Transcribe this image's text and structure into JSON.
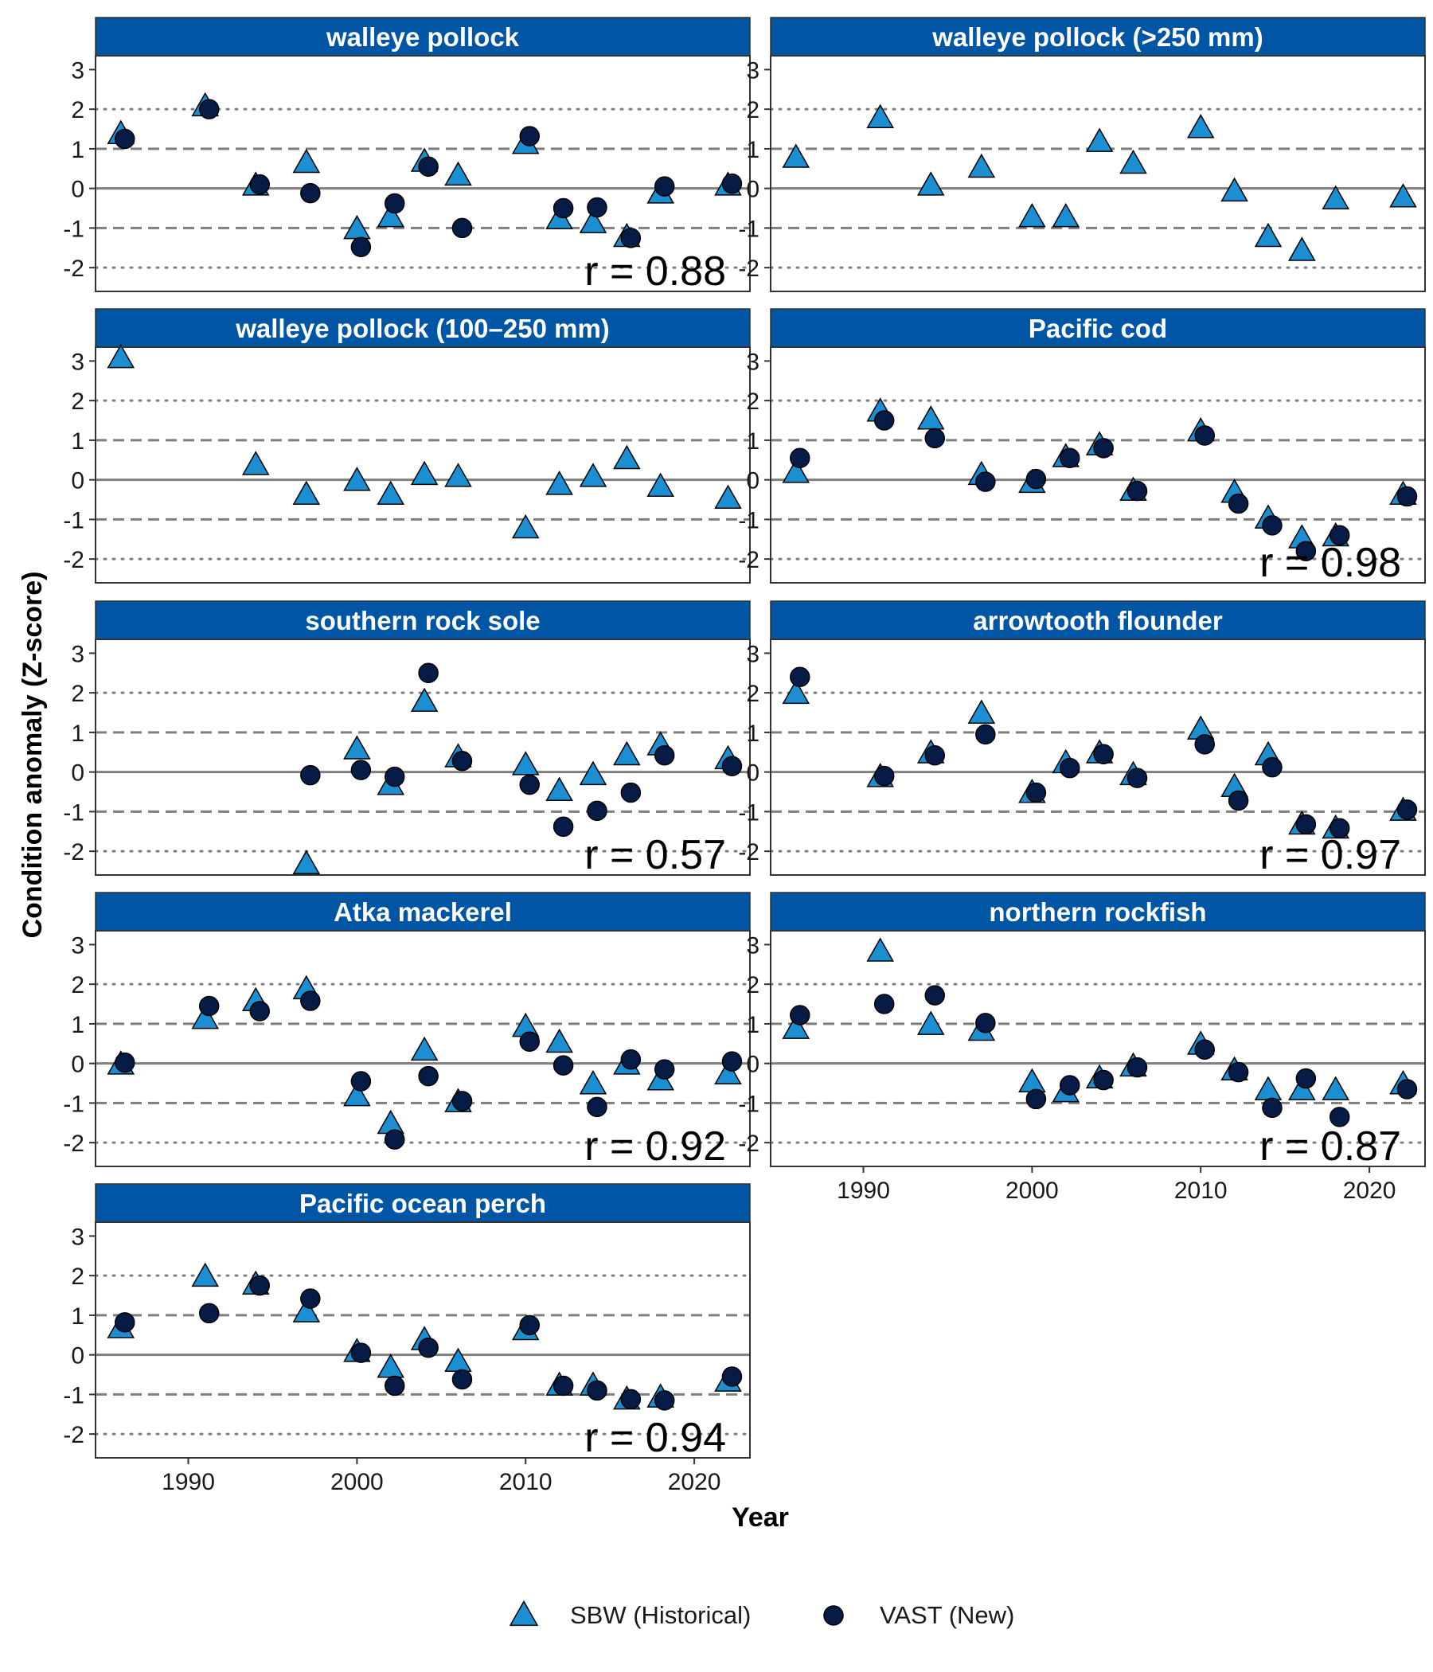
{
  "chart_data": {
    "type": "scatter",
    "xlabel": "Year",
    "ylabel": "Condition anomaly (Z-score)",
    "xlim": [
      1984.5,
      2023.3
    ],
    "ylim": [
      -2.6,
      3.35
    ],
    "x_ticks": [
      1990,
      2000,
      2010,
      2020
    ],
    "y_ticks": [
      -2,
      -1,
      0,
      1,
      2,
      3
    ],
    "reference_lines": {
      "solid": [
        0
      ],
      "dashed": [
        -1,
        1
      ],
      "dotted": [
        -2,
        2
      ]
    },
    "legend": {
      "position": "bottom",
      "entries": [
        {
          "key": "sbw",
          "label": "SBW (Historical)",
          "marker": "triangle",
          "color": "#1b8fd1"
        },
        {
          "key": "vast",
          "label": "VAST (New)",
          "marker": "circle",
          "color": "#061b45"
        }
      ]
    },
    "colors": {
      "strip": "#0055a5",
      "sbw": "#1b8fd1",
      "vast": "#061b45",
      "zero_line": "#7f7f7f",
      "guide_line": "#7f7f7f"
    },
    "panels": [
      {
        "title": "walleye pollock",
        "r": "r = 0.88",
        "sbw": [
          [
            1986,
            1.35
          ],
          [
            1991,
            2.05
          ],
          [
            1994,
            0.05
          ],
          [
            1997,
            0.62
          ],
          [
            2000,
            -1.05
          ],
          [
            2002,
            -0.75
          ],
          [
            2004,
            0.65
          ],
          [
            2006,
            0.3
          ],
          [
            2010,
            1.1
          ],
          [
            2012,
            -0.8
          ],
          [
            2014,
            -0.9
          ],
          [
            2016,
            -1.25
          ],
          [
            2018,
            -0.15
          ],
          [
            2022,
            0.05
          ]
        ],
        "vast": [
          [
            1986,
            1.25
          ],
          [
            1991,
            2.0
          ],
          [
            1994,
            0.1
          ],
          [
            1997,
            -0.12
          ],
          [
            2000,
            -1.48
          ],
          [
            2002,
            -0.38
          ],
          [
            2004,
            0.55
          ],
          [
            2006,
            -1.0
          ],
          [
            2010,
            1.32
          ],
          [
            2012,
            -0.5
          ],
          [
            2014,
            -0.48
          ],
          [
            2016,
            -1.25
          ],
          [
            2018,
            0.05
          ],
          [
            2022,
            0.12
          ]
        ]
      },
      {
        "title": "walleye pollock (>250 mm)",
        "r": "",
        "sbw": [
          [
            1986,
            0.75
          ],
          [
            1991,
            1.75
          ],
          [
            1994,
            0.05
          ],
          [
            1997,
            0.5
          ],
          [
            2000,
            -0.75
          ],
          [
            2002,
            -0.75
          ],
          [
            2004,
            1.15
          ],
          [
            2006,
            0.6
          ],
          [
            2010,
            1.5
          ],
          [
            2012,
            -0.1
          ],
          [
            2014,
            -1.25
          ],
          [
            2016,
            -1.6
          ],
          [
            2018,
            -0.3
          ],
          [
            2022,
            -0.25
          ]
        ],
        "vast": []
      },
      {
        "title": "walleye pollock (100–250 mm)",
        "r": "",
        "sbw": [
          [
            1986,
            3.05
          ],
          [
            1994,
            0.35
          ],
          [
            1997,
            -0.4
          ],
          [
            2000,
            -0.05
          ],
          [
            2002,
            -0.4
          ],
          [
            2004,
            0.1
          ],
          [
            2006,
            0.05
          ],
          [
            2010,
            -1.25
          ],
          [
            2012,
            -0.15
          ],
          [
            2014,
            0.05
          ],
          [
            2016,
            0.5
          ],
          [
            2018,
            -0.2
          ],
          [
            2022,
            -0.5
          ]
        ],
        "vast": []
      },
      {
        "title": "Pacific cod",
        "r": "r = 0.98",
        "sbw": [
          [
            1986,
            0.15
          ],
          [
            1991,
            1.7
          ],
          [
            1994,
            1.5
          ],
          [
            1997,
            0.1
          ],
          [
            2000,
            -0.1
          ],
          [
            2002,
            0.55
          ],
          [
            2004,
            0.85
          ],
          [
            2006,
            -0.3
          ],
          [
            2010,
            1.2
          ],
          [
            2012,
            -0.35
          ],
          [
            2014,
            -1.0
          ],
          [
            2016,
            -1.5
          ],
          [
            2018,
            -1.45
          ],
          [
            2022,
            -0.4
          ]
        ],
        "vast": [
          [
            1986,
            0.55
          ],
          [
            1991,
            1.5
          ],
          [
            1994,
            1.05
          ],
          [
            1997,
            -0.05
          ],
          [
            2000,
            0.02
          ],
          [
            2002,
            0.55
          ],
          [
            2004,
            0.8
          ],
          [
            2006,
            -0.28
          ],
          [
            2010,
            1.12
          ],
          [
            2012,
            -0.6
          ],
          [
            2014,
            -1.15
          ],
          [
            2016,
            -1.8
          ],
          [
            2018,
            -1.4
          ],
          [
            2022,
            -0.42
          ]
        ]
      },
      {
        "title": "southern rock sole",
        "r": "r = 0.57",
        "sbw": [
          [
            1997,
            -2.35
          ],
          [
            2000,
            0.55
          ],
          [
            2002,
            -0.35
          ],
          [
            2004,
            1.75
          ],
          [
            2006,
            0.35
          ],
          [
            2010,
            0.15
          ],
          [
            2012,
            -0.5
          ],
          [
            2014,
            -0.1
          ],
          [
            2016,
            0.4
          ],
          [
            2018,
            0.65
          ],
          [
            2022,
            0.3
          ]
        ],
        "vast": [
          [
            1997,
            -0.08
          ],
          [
            2000,
            0.05
          ],
          [
            2002,
            -0.12
          ],
          [
            2004,
            2.5
          ],
          [
            2006,
            0.28
          ],
          [
            2010,
            -0.32
          ],
          [
            2012,
            -1.38
          ],
          [
            2014,
            -0.98
          ],
          [
            2016,
            -0.52
          ],
          [
            2018,
            0.42
          ],
          [
            2022,
            0.15
          ]
        ]
      },
      {
        "title": "arrowtooth flounder",
        "r": "r = 0.97",
        "sbw": [
          [
            1986,
            1.95
          ],
          [
            1991,
            -0.15
          ],
          [
            1994,
            0.45
          ],
          [
            1997,
            1.45
          ],
          [
            2000,
            -0.55
          ],
          [
            2002,
            0.2
          ],
          [
            2004,
            0.45
          ],
          [
            2006,
            -0.1
          ],
          [
            2010,
            1.05
          ],
          [
            2012,
            -0.4
          ],
          [
            2014,
            0.4
          ],
          [
            2016,
            -1.35
          ],
          [
            2018,
            -1.45
          ],
          [
            2022,
            -1.0
          ]
        ],
        "vast": [
          [
            1986,
            2.4
          ],
          [
            1991,
            -0.1
          ],
          [
            1994,
            0.42
          ],
          [
            1997,
            0.95
          ],
          [
            2000,
            -0.52
          ],
          [
            2002,
            0.1
          ],
          [
            2004,
            0.45
          ],
          [
            2006,
            -0.15
          ],
          [
            2010,
            0.7
          ],
          [
            2012,
            -0.72
          ],
          [
            2014,
            0.12
          ],
          [
            2016,
            -1.32
          ],
          [
            2018,
            -1.42
          ],
          [
            2022,
            -0.95
          ]
        ]
      },
      {
        "title": "Atka mackerel",
        "r": "r = 0.92",
        "sbw": [
          [
            1986,
            -0.05
          ],
          [
            1991,
            1.1
          ],
          [
            1994,
            1.55
          ],
          [
            1997,
            1.85
          ],
          [
            2000,
            -0.85
          ],
          [
            2002,
            -1.55
          ],
          [
            2004,
            0.3
          ],
          [
            2006,
            -1.0
          ],
          [
            2010,
            0.9
          ],
          [
            2012,
            0.5
          ],
          [
            2014,
            -0.55
          ],
          [
            2016,
            -0.05
          ],
          [
            2018,
            -0.45
          ],
          [
            2022,
            -0.3
          ]
        ],
        "vast": [
          [
            1986,
            0.02
          ],
          [
            1991,
            1.45
          ],
          [
            1994,
            1.32
          ],
          [
            1997,
            1.58
          ],
          [
            2000,
            -0.45
          ],
          [
            2002,
            -1.92
          ],
          [
            2004,
            -0.32
          ],
          [
            2006,
            -0.95
          ],
          [
            2010,
            0.55
          ],
          [
            2012,
            -0.05
          ],
          [
            2014,
            -1.1
          ],
          [
            2016,
            0.1
          ],
          [
            2018,
            -0.15
          ],
          [
            2022,
            0.05
          ]
        ]
      },
      {
        "title": "northern rockfish",
        "r": "r = 0.87",
        "sbw": [
          [
            1986,
            0.85
          ],
          [
            1991,
            2.8
          ],
          [
            1994,
            0.95
          ],
          [
            1997,
            0.8
          ],
          [
            2000,
            -0.5
          ],
          [
            2002,
            -0.75
          ],
          [
            2004,
            -0.4
          ],
          [
            2006,
            -0.1
          ],
          [
            2010,
            0.45
          ],
          [
            2012,
            -0.2
          ],
          [
            2014,
            -0.7
          ],
          [
            2016,
            -0.7
          ],
          [
            2018,
            -0.7
          ],
          [
            2022,
            -0.55
          ]
        ],
        "vast": [
          [
            1986,
            1.22
          ],
          [
            1991,
            1.5
          ],
          [
            1994,
            1.72
          ],
          [
            1997,
            1.02
          ],
          [
            2000,
            -0.9
          ],
          [
            2002,
            -0.55
          ],
          [
            2004,
            -0.42
          ],
          [
            2006,
            -0.1
          ],
          [
            2010,
            0.35
          ],
          [
            2012,
            -0.22
          ],
          [
            2014,
            -1.12
          ],
          [
            2016,
            -0.38
          ],
          [
            2018,
            -1.35
          ],
          [
            2022,
            -0.65
          ]
        ]
      },
      {
        "title": "Pacific ocean perch",
        "r": "r = 0.94",
        "sbw": [
          [
            1986,
            0.65
          ],
          [
            1991,
            1.95
          ],
          [
            1994,
            1.75
          ],
          [
            1997,
            1.05
          ],
          [
            2000,
            0.05
          ],
          [
            2002,
            -0.35
          ],
          [
            2004,
            0.35
          ],
          [
            2006,
            -0.2
          ],
          [
            2010,
            0.6
          ],
          [
            2012,
            -0.8
          ],
          [
            2014,
            -0.8
          ],
          [
            2016,
            -1.15
          ],
          [
            2018,
            -1.1
          ],
          [
            2022,
            -0.7
          ]
        ],
        "vast": [
          [
            1986,
            0.82
          ],
          [
            1991,
            1.05
          ],
          [
            1994,
            1.75
          ],
          [
            1997,
            1.42
          ],
          [
            2000,
            0.05
          ],
          [
            2002,
            -0.78
          ],
          [
            2004,
            0.18
          ],
          [
            2006,
            -0.62
          ],
          [
            2010,
            0.75
          ],
          [
            2012,
            -0.78
          ],
          [
            2014,
            -0.9
          ],
          [
            2016,
            -1.12
          ],
          [
            2018,
            -1.15
          ],
          [
            2022,
            -0.55
          ]
        ]
      }
    ]
  }
}
